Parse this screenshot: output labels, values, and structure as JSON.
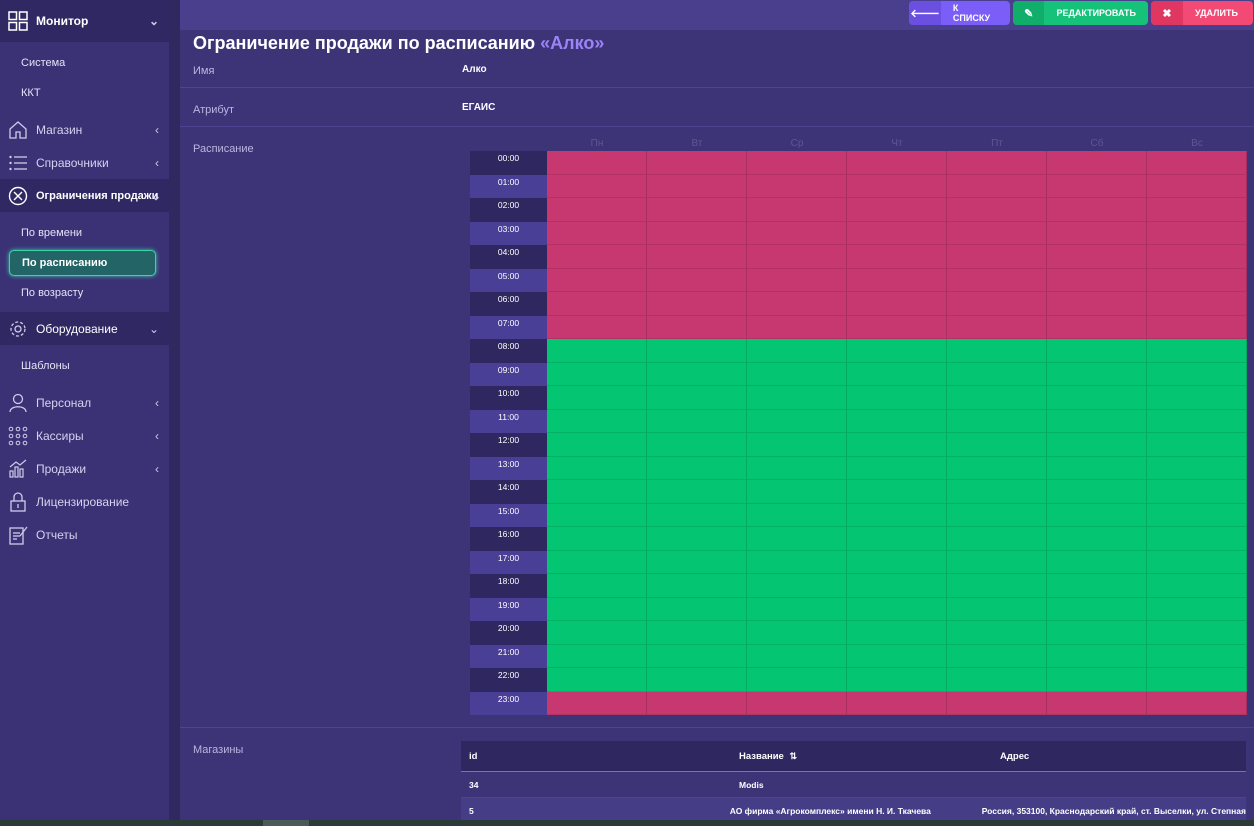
{
  "sidebar": {
    "monitor": "Монитор",
    "monitor_sub": [
      "Система",
      "ККТ"
    ],
    "shop": "Магазин",
    "directories": "Справочники",
    "restrictions": "Ограничения продажи",
    "restrictions_sub": [
      "По времени",
      "По расписанию",
      "По возрасту"
    ],
    "equipment": "Оборудование",
    "equipment_sub": [
      "Шаблоны"
    ],
    "staff": "Персонал",
    "cashiers": "Кассиры",
    "sales": "Продажи",
    "licensing": "Лицензирование",
    "reports": "Отчеты"
  },
  "toolbar": {
    "back_label": "К СПИСКУ",
    "edit_label": "РЕДАКТИРОВАТЬ",
    "delete_label": "УДАЛИТЬ"
  },
  "page": {
    "title_prefix": "Ограничение продажи по расписанию",
    "title_name": "«Алко»"
  },
  "fields": {
    "name_label": "Имя",
    "name_value": "Алко",
    "attribute_label": "Атрибут",
    "attribute_value": "ЕГАИС",
    "schedule_label": "Расписание",
    "stores_label": "Магазины"
  },
  "schedule": {
    "days": [
      "Пн",
      "Вт",
      "Ср",
      "Чт",
      "Пт",
      "Сб",
      "Вс"
    ],
    "hours": [
      "00:00",
      "01:00",
      "02:00",
      "03:00",
      "04:00",
      "05:00",
      "06:00",
      "07:00",
      "08:00",
      "09:00",
      "10:00",
      "11:00",
      "12:00",
      "13:00",
      "14:00",
      "15:00",
      "16:00",
      "17:00",
      "18:00",
      "19:00",
      "20:00",
      "21:00",
      "22:00",
      "23:00"
    ],
    "restricted_hours": [
      0,
      1,
      2,
      3,
      4,
      5,
      6,
      7,
      23
    ],
    "colors": {
      "restricted": "#c6386f",
      "allowed": "#04c672"
    }
  },
  "stores": {
    "columns": [
      "id",
      "Название",
      "Адрес"
    ],
    "rows": [
      {
        "id": "34",
        "name": "Modis",
        "address": ""
      },
      {
        "id": "5",
        "name": "АО фирма «Агрокомплекс» имени Н. И. Ткачева",
        "address": "Россия, 353100, Краснодарский край, ст. Выселки, ул. Степная"
      }
    ]
  }
}
